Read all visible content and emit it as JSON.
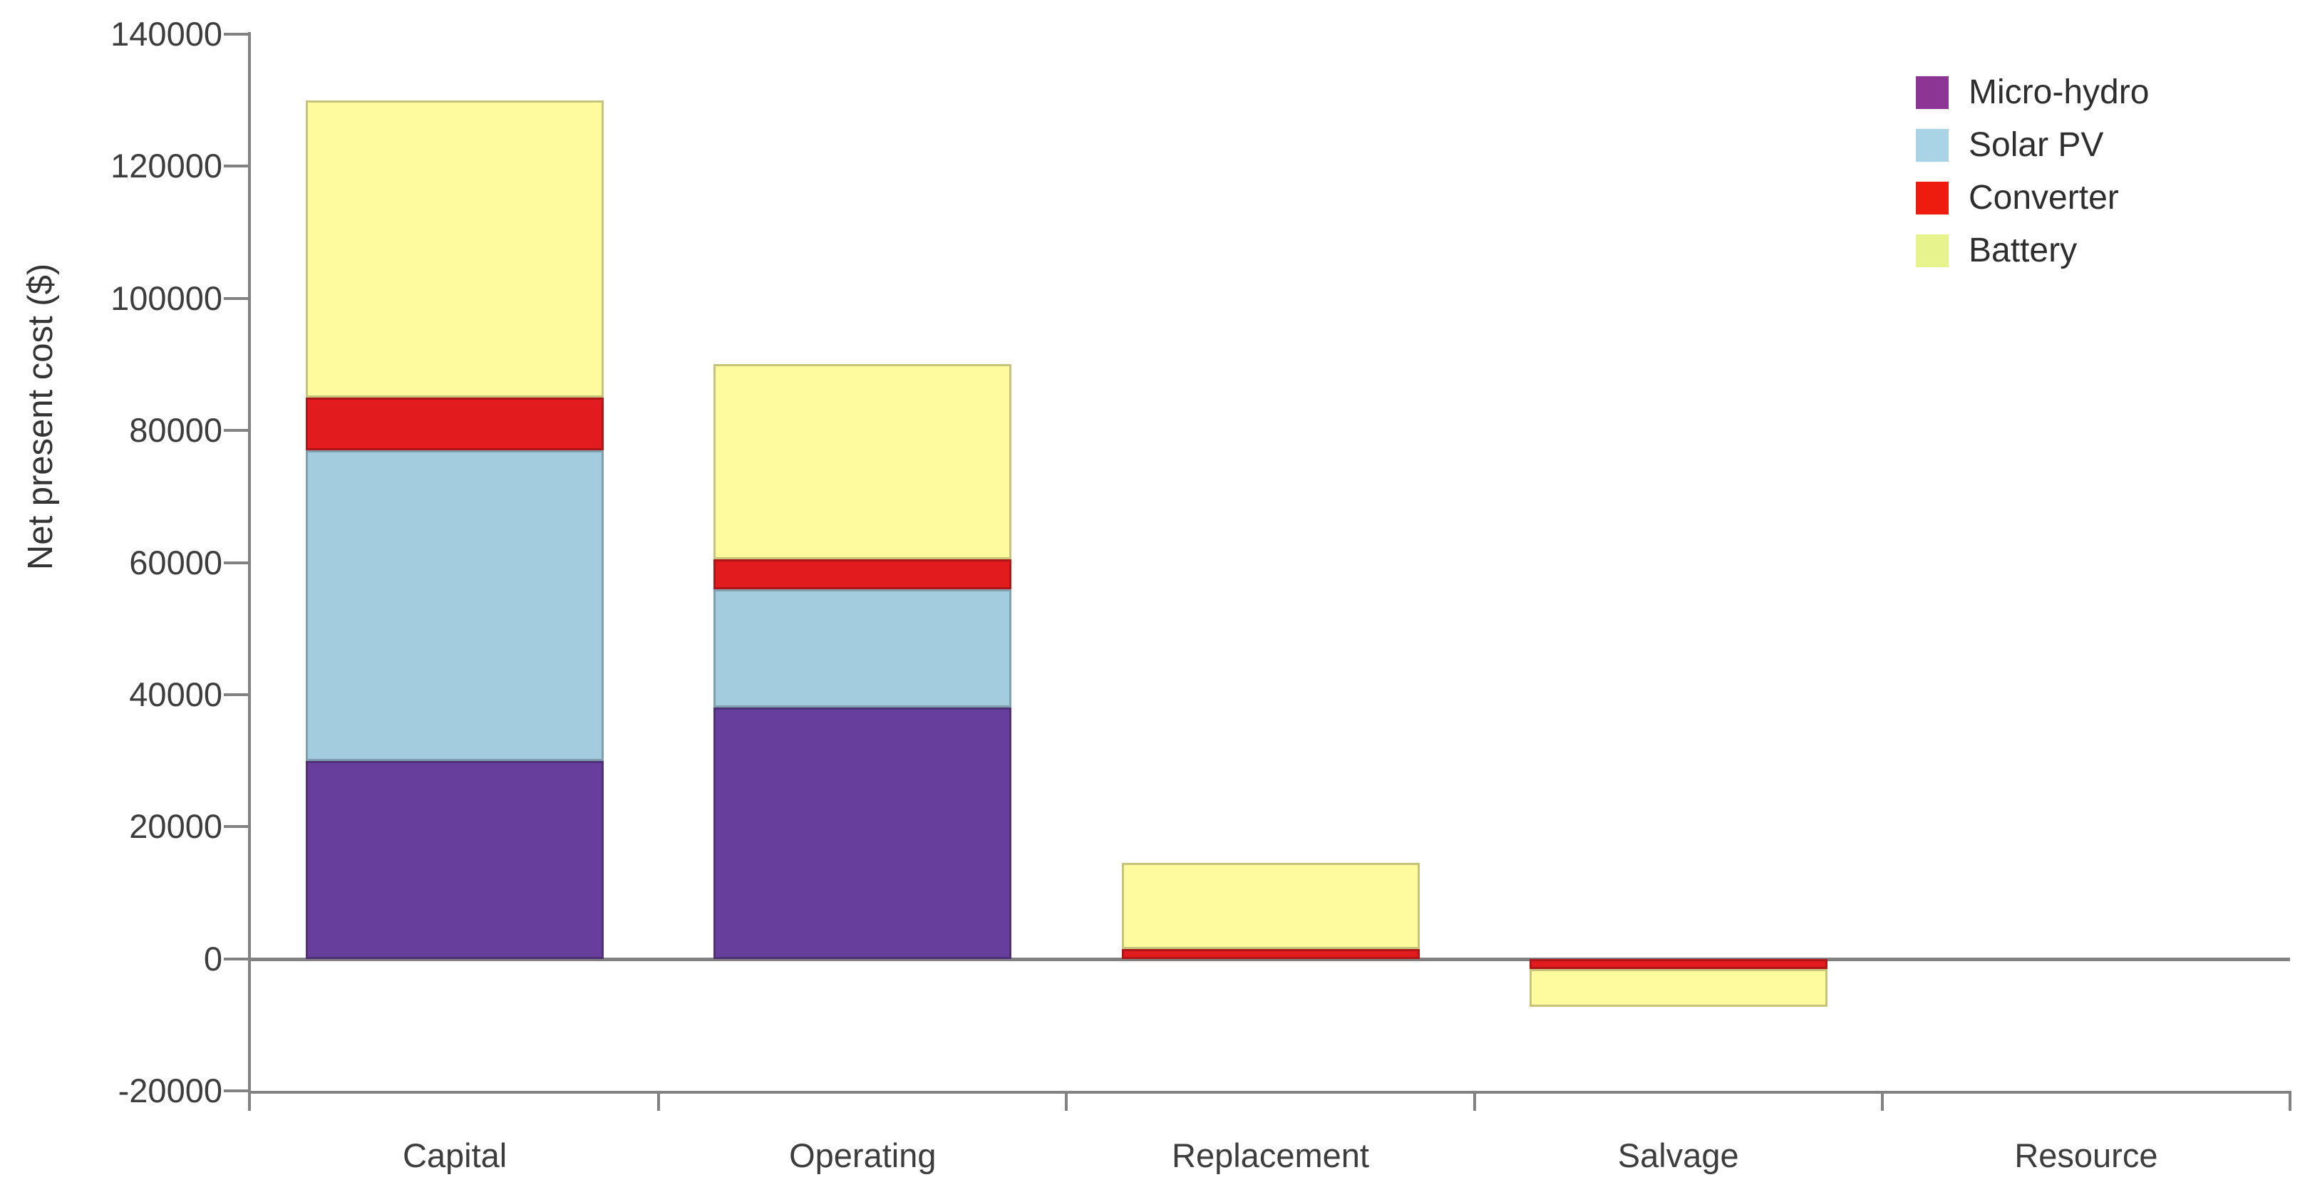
{
  "chart_data": {
    "type": "bar",
    "stacked": true,
    "title": "",
    "xlabel": "",
    "ylabel": "Net present cost ($)",
    "categories": [
      "Capital",
      "Operating",
      "Replacement",
      "Salvage",
      "Resource"
    ],
    "series": [
      {
        "name": "Micro-hydro",
        "color": "#673E9B",
        "legend_color": "#8C3594",
        "values": [
          30000,
          38000,
          0,
          0,
          0
        ]
      },
      {
        "name": "Solar PV",
        "color": "#A3CCDF",
        "legend_color": "#A8D4E6",
        "values": [
          47000,
          18000,
          0,
          0,
          0
        ]
      },
      {
        "name": "Converter",
        "color": "#E11B1E",
        "legend_color": "#EE1C0F",
        "values": [
          8000,
          4500,
          1500,
          -1500,
          0
        ]
      },
      {
        "name": "Battery",
        "color": "#FDFB9D",
        "legend_color": "#E7F48D",
        "values": [
          45000,
          29500,
          13000,
          -5800,
          0
        ]
      }
    ],
    "ylim": [
      -20000,
      140000
    ],
    "ytick_step": 20000,
    "yticks": [
      "140000",
      "120000",
      "100000",
      "80000",
      "60000",
      "40000",
      "20000",
      "0",
      "-20000"
    ],
    "legend_position": "top-right",
    "grid": false,
    "zero_line": true,
    "axis_color": "#828282",
    "text_color": "#3d3d3d"
  }
}
